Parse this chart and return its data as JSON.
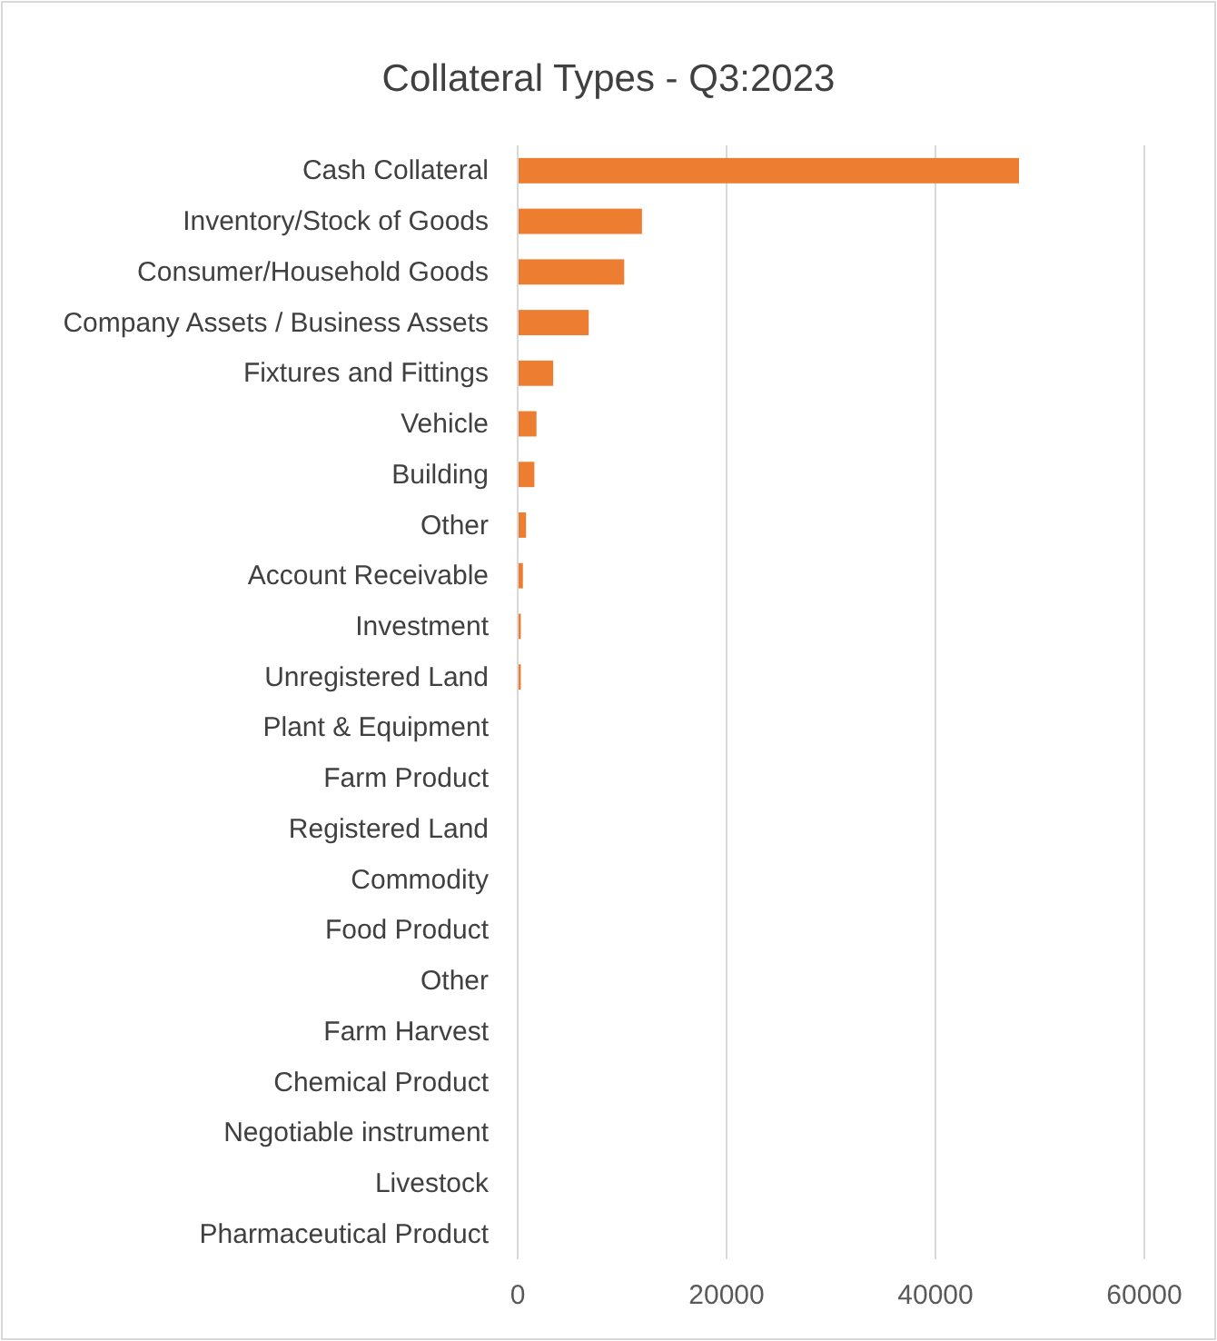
{
  "chart_data": {
    "type": "bar",
    "orientation": "horizontal",
    "title": "Collateral Types - Q3:2023",
    "categories": [
      "Cash Collateral",
      "Inventory/Stock of Goods",
      "Consumer/Household Goods",
      "Company Assets / Business Assets",
      "Fixtures and Fittings",
      "Vehicle",
      "Building",
      "Other",
      "Account Receivable",
      "Investment",
      "Unregistered Land",
      "Plant & Equipment",
      "Farm Product",
      "Registered Land",
      "Commodity",
      "Food Product",
      "Other",
      "Farm Harvest",
      "Chemical Product",
      "Negotiable instrument",
      "Livestock",
      "Pharmaceutical Product"
    ],
    "values": [
      48000,
      11900,
      10200,
      6800,
      3400,
      1800,
      1600,
      800,
      500,
      300,
      300,
      0,
      0,
      0,
      0,
      0,
      0,
      0,
      0,
      0,
      0,
      0
    ],
    "color": "#ed7d31",
    "xlim": [
      0,
      60000
    ],
    "xticks": [
      0,
      20000,
      40000,
      60000
    ],
    "grid": "x"
  }
}
